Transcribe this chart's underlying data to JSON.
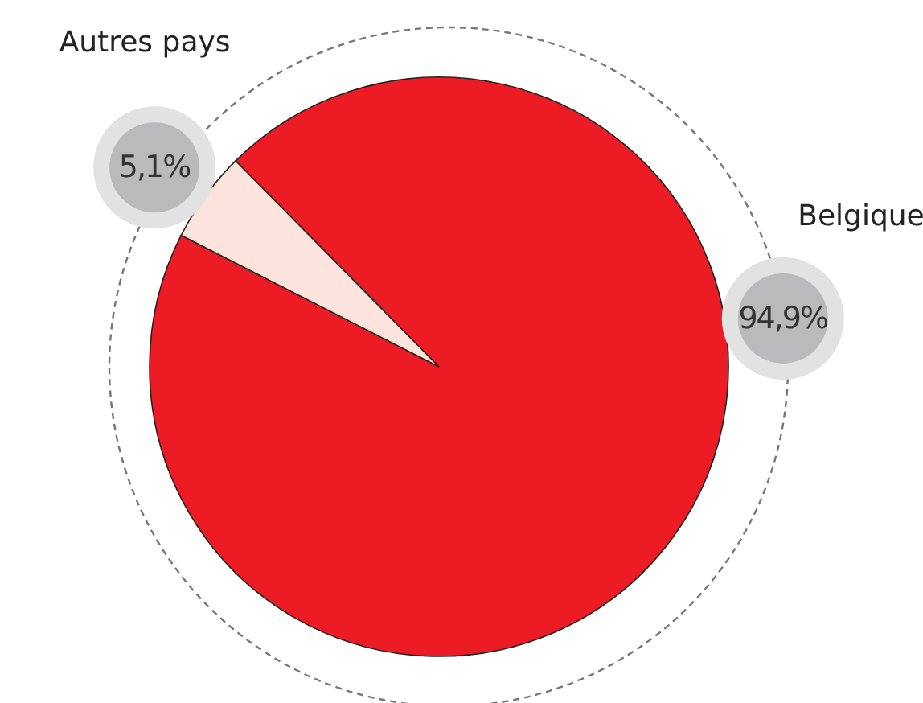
{
  "chart_data": {
    "type": "pie",
    "categories": [
      "Belgique",
      "Autres pays"
    ],
    "values": [
      94.9,
      5.1
    ],
    "colors": [
      "#ed1c24",
      "#fce4dc"
    ],
    "value_labels": [
      "94,9%",
      "5,1%"
    ]
  }
}
